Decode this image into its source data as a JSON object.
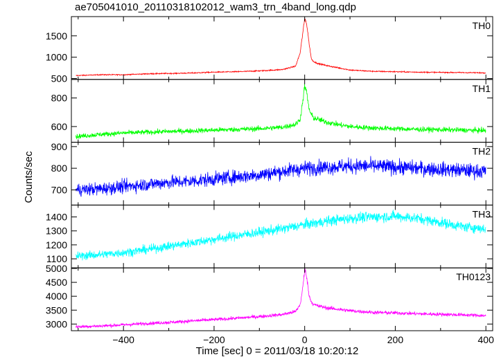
{
  "title": "ae705041010_20110318102012_wam3_trn_4band_long.qdp",
  "xlabel": "Time [sec] 0 = 2011/03/18 10:20:12",
  "ylabel": "Counts/sec",
  "chart_data": [
    {
      "type": "line",
      "name": "TH0",
      "color": "#ff0000",
      "xlim": [
        -515,
        415
      ],
      "ylim": [
        480,
        1950
      ],
      "yticks": [
        500,
        1000,
        1500
      ],
      "x": [
        -505,
        -450,
        -400,
        -350,
        -300,
        -250,
        -200,
        -150,
        -100,
        -50,
        -20,
        -10,
        -5,
        0,
        3,
        6,
        10,
        15,
        20,
        30,
        50,
        80,
        100,
        150,
        200,
        250,
        300,
        350,
        400
      ],
      "values": [
        570,
        590,
        590,
        610,
        620,
        630,
        650,
        660,
        680,
        710,
        790,
        1100,
        1500,
        1900,
        1850,
        1650,
        1300,
        950,
        900,
        850,
        800,
        740,
        700,
        670,
        660,
        650,
        645,
        640,
        635
      ]
    },
    {
      "type": "line",
      "name": "TH1",
      "color": "#00ff00",
      "xlim": [
        -515,
        415
      ],
      "ylim": [
        490,
        930
      ],
      "yticks": [
        600,
        800
      ],
      "x": [
        -505,
        -450,
        -400,
        -350,
        -300,
        -250,
        -200,
        -150,
        -100,
        -50,
        -20,
        -10,
        -5,
        0,
        3,
        6,
        10,
        15,
        20,
        30,
        50,
        80,
        100,
        150,
        200,
        250,
        300,
        350,
        400
      ],
      "values": [
        530,
        545,
        555,
        560,
        565,
        570,
        575,
        580,
        585,
        595,
        615,
        650,
        760,
        880,
        860,
        800,
        720,
        680,
        660,
        650,
        630,
        610,
        600,
        590,
        585,
        580,
        578,
        575,
        572
      ]
    },
    {
      "type": "line",
      "name": "TH2",
      "color": "#0000ff",
      "xlim": [
        -515,
        415
      ],
      "ylim": [
        630,
        920
      ],
      "yticks": [
        700,
        800,
        900
      ],
      "x": [
        -505,
        -450,
        -400,
        -350,
        -300,
        -250,
        -200,
        -150,
        -100,
        -50,
        0,
        50,
        100,
        150,
        200,
        250,
        300,
        350,
        400
      ],
      "values": [
        700,
        705,
        715,
        725,
        735,
        740,
        750,
        760,
        770,
        785,
        800,
        805,
        810,
        810,
        805,
        800,
        795,
        790,
        785
      ]
    },
    {
      "type": "line",
      "name": "TH3",
      "color": "#00ffff",
      "xlim": [
        -515,
        415
      ],
      "ylim": [
        1035,
        1485
      ],
      "yticks": [
        1100,
        1200,
        1300,
        1400
      ],
      "x": [
        -505,
        -450,
        -400,
        -350,
        -300,
        -250,
        -200,
        -150,
        -100,
        -50,
        0,
        50,
        100,
        150,
        200,
        250,
        300,
        350,
        400
      ],
      "values": [
        1120,
        1130,
        1145,
        1165,
        1190,
        1215,
        1240,
        1265,
        1290,
        1315,
        1345,
        1370,
        1390,
        1400,
        1405,
        1390,
        1360,
        1330,
        1315
      ]
    },
    {
      "type": "line",
      "name": "TH0123",
      "color": "#ff00ff",
      "xlim": [
        -515,
        415
      ],
      "ylim": [
        2760,
        5020
      ],
      "yticks": [
        3000,
        3500,
        4000,
        4500,
        5000
      ],
      "x": [
        -505,
        -450,
        -400,
        -350,
        -300,
        -250,
        -200,
        -150,
        -100,
        -50,
        -20,
        -10,
        -5,
        0,
        3,
        6,
        10,
        15,
        20,
        30,
        50,
        80,
        100,
        150,
        200,
        250,
        300,
        350,
        400
      ],
      "values": [
        2900,
        2930,
        2970,
        3020,
        3060,
        3110,
        3160,
        3210,
        3270,
        3340,
        3450,
        3700,
        4200,
        4950,
        4850,
        4500,
        4000,
        3800,
        3700,
        3650,
        3580,
        3520,
        3480,
        3420,
        3400,
        3370,
        3350,
        3330,
        3300
      ]
    }
  ],
  "xticks": [
    -400,
    -200,
    0,
    200,
    400
  ]
}
